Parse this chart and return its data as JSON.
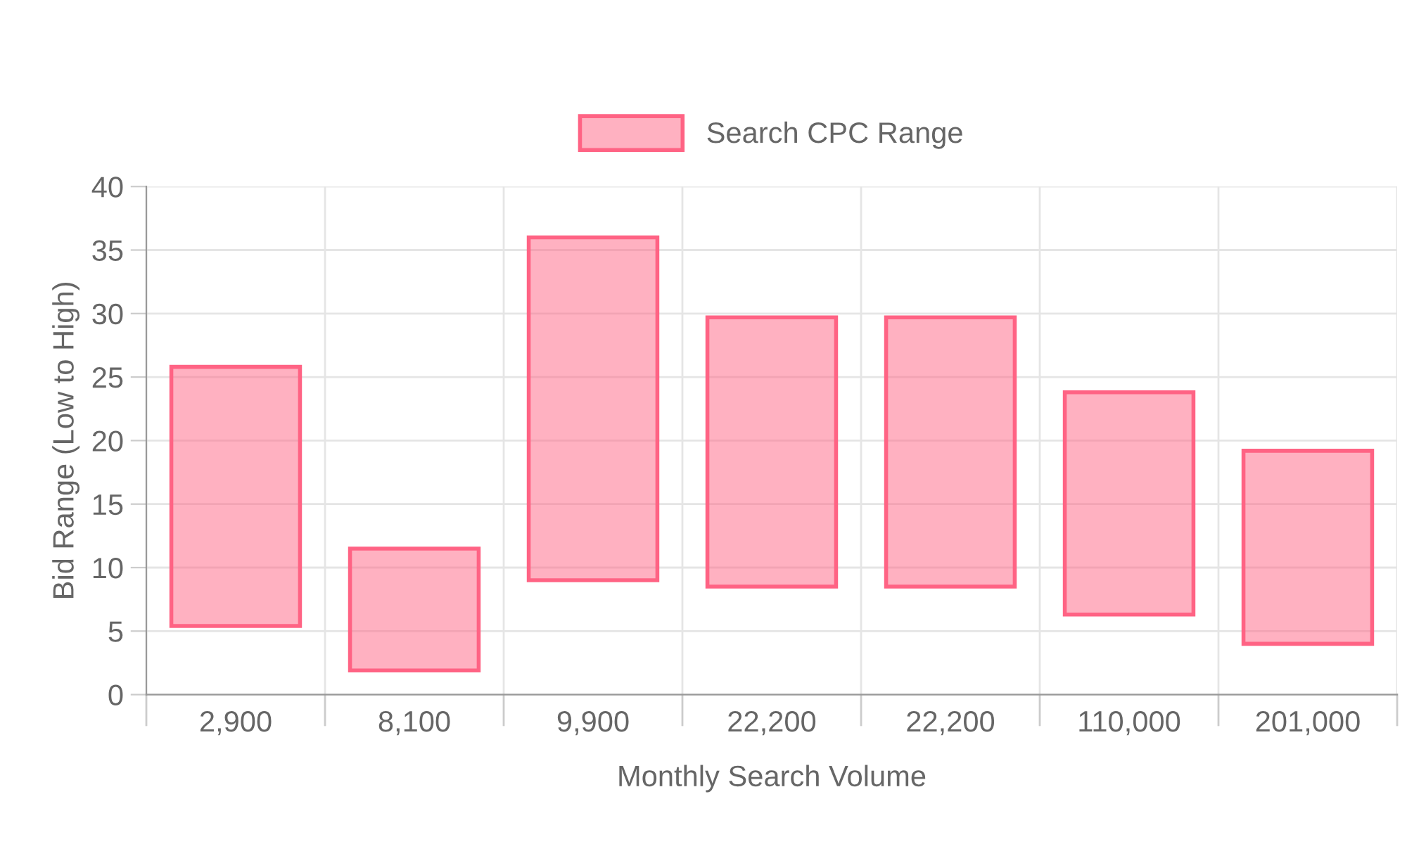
{
  "chart_data": {
    "type": "bar",
    "xlabel": "Monthly Search Volume",
    "ylabel": "Bid Range (Low to High)",
    "categories": [
      "2,900",
      "8,100",
      "9,900",
      "22,200",
      "22,200",
      "110,000",
      "201,000"
    ],
    "series": [
      {
        "name": "Search CPC Range",
        "color": "#ff6384",
        "values": [
          20.4,
          9.6,
          27.0,
          21.2,
          21.2,
          17.5,
          15.2
        ],
        "base": [
          5.4,
          1.9,
          9.0,
          8.5,
          8.5,
          6.3,
          4.0
        ]
      }
    ],
    "ylim": [
      0,
      40
    ],
    "yticks": [
      0,
      5,
      10,
      15,
      20,
      25,
      30,
      35,
      40
    ],
    "grid": true,
    "legend": "top"
  }
}
